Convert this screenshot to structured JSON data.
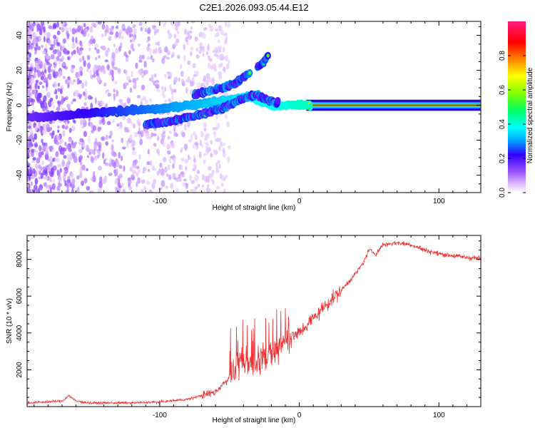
{
  "title": "C2E1.2026.093.05.44.E12",
  "colors": {
    "snr_line": "#ee3333",
    "zero_line": "#1a2a66"
  },
  "chart_data": [
    {
      "type": "heatmap",
      "name": "spectrogram",
      "xlabel": "Height of straight line (km)",
      "ylabel": "Frequency (Hz)",
      "xlim": [
        -195,
        130
      ],
      "ylim": [
        -50,
        48
      ],
      "x_ticks": [
        -100,
        0,
        100
      ],
      "x_tick_labels": [
        "-100",
        "0",
        "100"
      ],
      "y_ticks": [
        -40,
        -20,
        0,
        20,
        40
      ],
      "y_tick_labels": [
        "-40",
        "-20",
        "0",
        "20",
        "40"
      ],
      "colorbar": {
        "label": "Normalized spectral amplitude",
        "range": [
          0,
          1
        ],
        "ticks": [
          0.0,
          0.2,
          0.4,
          0.6,
          0.8
        ],
        "tick_labels": [
          "0.0",
          "0.2",
          "0.4",
          "0.6",
          "0.8"
        ]
      },
      "traces": [
        {
          "name": "main-trace",
          "x": [
            -195,
            -170,
            -140,
            -120,
            -100,
            -80,
            -60,
            -45,
            -38,
            -30,
            -20,
            -10,
            0,
            5,
            15,
            130
          ],
          "y": [
            -7,
            -6,
            -4,
            -3,
            -2,
            0,
            2,
            4,
            5,
            3,
            0,
            0,
            0,
            0,
            0,
            0
          ]
        },
        {
          "name": "lower-branch",
          "x": [
            -110,
            -90,
            -75,
            -60,
            -50,
            -40,
            -30,
            -25,
            -15
          ],
          "y": [
            -11,
            -9,
            -6,
            -3,
            0,
            4,
            6,
            4,
            1
          ]
        },
        {
          "name": "upper-branch",
          "x": [
            -75,
            -65,
            -55,
            -45,
            -40,
            -35
          ],
          "y": [
            6,
            8,
            10,
            13,
            16,
            19
          ]
        },
        {
          "name": "tail-branch",
          "x": [
            -30,
            -25,
            -22
          ],
          "y": [
            22,
            25,
            29
          ]
        }
      ]
    },
    {
      "type": "line",
      "name": "snr",
      "xlabel": "Height of straight line (km)",
      "ylabel": "SNR (10 * v/v)",
      "xlim": [
        -195,
        130
      ],
      "ylim": [
        0,
        9300
      ],
      "x_ticks": [
        -100,
        0,
        100
      ],
      "x_tick_labels": [
        "-100",
        "0",
        "100"
      ],
      "y_ticks": [
        2000,
        4000,
        6000,
        8000
      ],
      "y_tick_labels": [
        "2000",
        "4000",
        "6000",
        "8000"
      ],
      "series": [
        {
          "name": "SNR",
          "x": [
            -195,
            -170,
            -165,
            -160,
            -150,
            -120,
            -100,
            -80,
            -70,
            -60,
            -55,
            -50,
            -45,
            -40,
            -35,
            -30,
            -25,
            -20,
            -15,
            -10,
            -5,
            0,
            10,
            20,
            30,
            40,
            45,
            50,
            55,
            60,
            70,
            80,
            90,
            100,
            110,
            120,
            130
          ],
          "y": [
            200,
            300,
            600,
            300,
            200,
            200,
            250,
            400,
            600,
            800,
            1200,
            1600,
            2000,
            2200,
            2400,
            2500,
            2600,
            2800,
            3200,
            3600,
            3800,
            4000,
            4800,
            5600,
            6300,
            7200,
            7700,
            8500,
            8300,
            8800,
            8900,
            8800,
            8500,
            8300,
            8200,
            8100,
            8050
          ]
        }
      ]
    }
  ]
}
